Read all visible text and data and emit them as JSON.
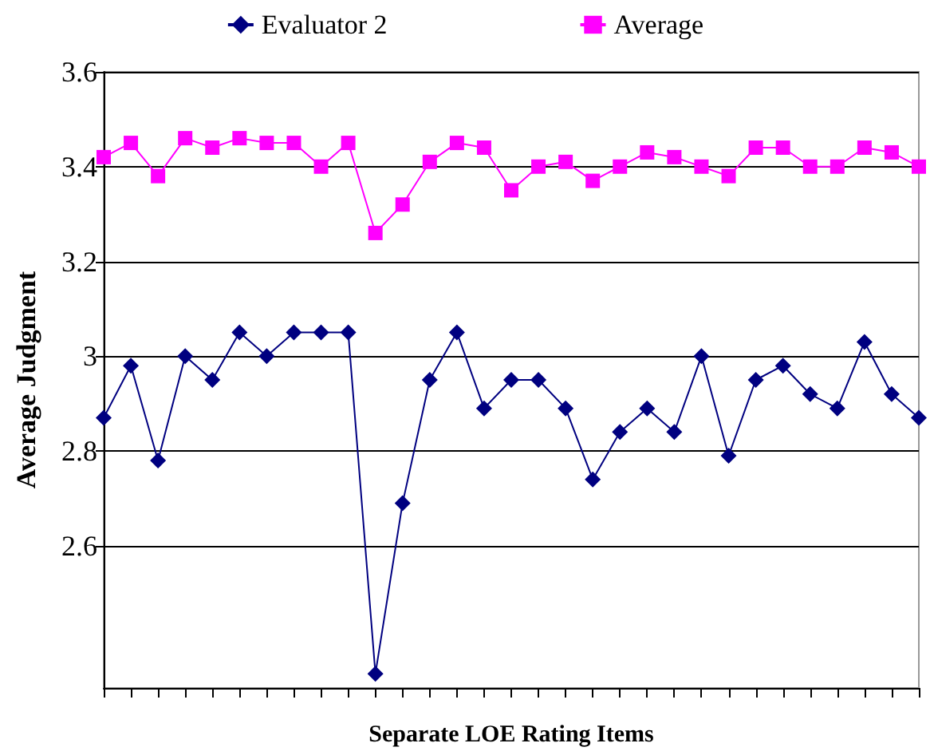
{
  "chart_data": {
    "type": "line",
    "xlabel": "Separate LOE Rating Items",
    "ylabel": "Average Judgment",
    "categories": [
      null,
      null,
      null,
      null,
      null,
      null,
      null,
      null,
      null,
      null,
      null,
      null,
      null,
      null,
      null,
      null,
      null,
      null,
      null,
      null,
      null,
      null,
      null,
      null,
      null,
      null,
      null,
      null,
      null,
      null,
      null
    ],
    "series": [
      {
        "name": "Evaluator 2",
        "color": "#000080",
        "marker": "diamond",
        "values": [
          2.87,
          2.98,
          2.78,
          3.0,
          2.95,
          3.05,
          3.0,
          3.05,
          3.05,
          3.05,
          2.33,
          2.69,
          2.95,
          3.05,
          2.89,
          2.95,
          2.95,
          2.89,
          2.74,
          2.84,
          2.89,
          2.84,
          3.0,
          2.79,
          2.95,
          2.98,
          2.92,
          2.89,
          3.03,
          2.92,
          2.87
        ]
      },
      {
        "name": "Average",
        "color": "#ff00ff",
        "marker": "square",
        "values": [
          3.42,
          3.45,
          3.38,
          3.46,
          3.44,
          3.46,
          3.45,
          3.45,
          3.4,
          3.45,
          3.26,
          3.32,
          3.41,
          3.45,
          3.44,
          3.35,
          3.4,
          3.41,
          3.37,
          3.4,
          3.43,
          3.42,
          3.4,
          3.38,
          3.44,
          3.44,
          3.4,
          3.4,
          3.44,
          3.43,
          3.4
        ]
      }
    ],
    "ylim": [
      2.3,
      3.6
    ],
    "yticks": [
      2.6,
      2.8,
      3,
      3.2,
      3.4,
      3.6
    ],
    "grid": "y",
    "legend": "top",
    "tick_labels": "y"
  }
}
